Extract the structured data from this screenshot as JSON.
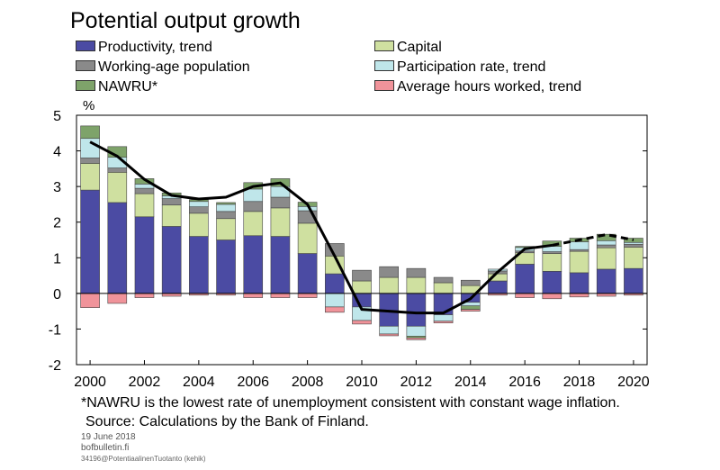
{
  "title": "Potential output growth",
  "legend": [
    {
      "label": "Productivity, trend",
      "color": "#4b4ba3"
    },
    {
      "label": "Capital",
      "color": "#cfe0a0"
    },
    {
      "label": "Working-age population",
      "color": "#8a8a8a"
    },
    {
      "label": "Participation rate, trend",
      "color": "#bfe6ea"
    },
    {
      "label": "NAWRU*",
      "color": "#7ea36a"
    },
    {
      "label": "Average hours worked, trend",
      "color": "#f0939a"
    }
  ],
  "notes": {
    "footnote": "*NAWRU is the lowest rate of unemployment consistent with constant wage inflation.",
    "source": "Source: Calculations by the Bank of Finland.",
    "date": "19 June 2018",
    "site": "bofbulletin.fi",
    "code": "34196@PotentiaalinenTuotanto (kehik)"
  },
  "chart_data": {
    "type": "bar",
    "stacked": true,
    "title": "Potential output growth",
    "ylabel": "%",
    "ylim": [
      -2,
      5
    ],
    "yticks": [
      "5",
      "4",
      "3",
      "2",
      "1",
      "0",
      "-1",
      "-2"
    ],
    "xticks": [
      "2000",
      "2002",
      "2004",
      "2006",
      "2008",
      "2010",
      "2012",
      "2014",
      "2016",
      "2018",
      "2020"
    ],
    "categories": [
      "2000",
      "2001",
      "2002",
      "2003",
      "2004",
      "2005",
      "2006",
      "2007",
      "2008",
      "2009",
      "2010",
      "2011",
      "2012",
      "2013",
      "2014",
      "2015",
      "2016",
      "2017",
      "2018",
      "2019",
      "2020"
    ],
    "series": [
      {
        "name": "Productivity, trend",
        "color": "#4b4ba3",
        "values": [
          2.9,
          2.55,
          2.15,
          1.88,
          1.6,
          1.5,
          1.62,
          1.6,
          1.12,
          0.55,
          -0.38,
          -0.92,
          -0.92,
          -0.6,
          -0.25,
          0.35,
          0.82,
          0.62,
          0.58,
          0.68,
          0.7
        ]
      },
      {
        "name": "Capital",
        "color": "#cfe0a0",
        "values": [
          0.75,
          0.85,
          0.65,
          0.6,
          0.65,
          0.6,
          0.68,
          0.8,
          0.85,
          0.5,
          0.35,
          0.45,
          0.45,
          0.3,
          0.22,
          0.2,
          0.32,
          0.5,
          0.6,
          0.6,
          0.6
        ]
      },
      {
        "name": "Working-age population",
        "color": "#8a8a8a",
        "values": [
          0.15,
          0.12,
          0.15,
          0.18,
          0.18,
          0.2,
          0.28,
          0.3,
          0.35,
          0.35,
          0.3,
          0.3,
          0.25,
          0.15,
          0.15,
          0.08,
          0.05,
          0.05,
          0.05,
          0.08,
          0.08
        ]
      },
      {
        "name": "Participation rate, trend",
        "color": "#bfe6ea",
        "values": [
          0.55,
          0.3,
          0.12,
          0.08,
          0.15,
          0.2,
          0.35,
          0.3,
          0.12,
          -0.38,
          -0.38,
          -0.22,
          -0.28,
          -0.18,
          -0.1,
          0.05,
          0.1,
          0.15,
          0.22,
          0.12,
          0.05
        ]
      },
      {
        "name": "NAWRU*",
        "color": "#7ea36a",
        "values": [
          0.35,
          0.3,
          0.15,
          0.08,
          0.05,
          0.05,
          0.18,
          0.22,
          0.12,
          0.0,
          0.0,
          0.0,
          -0.05,
          0.0,
          -0.1,
          0.0,
          0.03,
          0.15,
          0.1,
          0.18,
          0.12
        ]
      },
      {
        "name": "Average hours worked, trend",
        "color": "#f0939a",
        "values": [
          -0.4,
          -0.28,
          -0.12,
          -0.08,
          -0.05,
          -0.05,
          -0.12,
          -0.12,
          -0.12,
          -0.15,
          -0.1,
          -0.05,
          -0.05,
          -0.05,
          -0.05,
          -0.05,
          -0.12,
          -0.15,
          -0.1,
          -0.08,
          -0.05
        ]
      }
    ],
    "total_line": {
      "values": [
        4.25,
        3.85,
        3.2,
        2.75,
        2.65,
        2.7,
        3.0,
        3.1,
        2.5,
        1.05,
        -0.45,
        -0.5,
        -0.55,
        -0.55,
        -0.15,
        0.6,
        1.25,
        1.35,
        1.5,
        1.65,
        1.5
      ],
      "dashed_from": "2017"
    },
    "grid": false
  }
}
